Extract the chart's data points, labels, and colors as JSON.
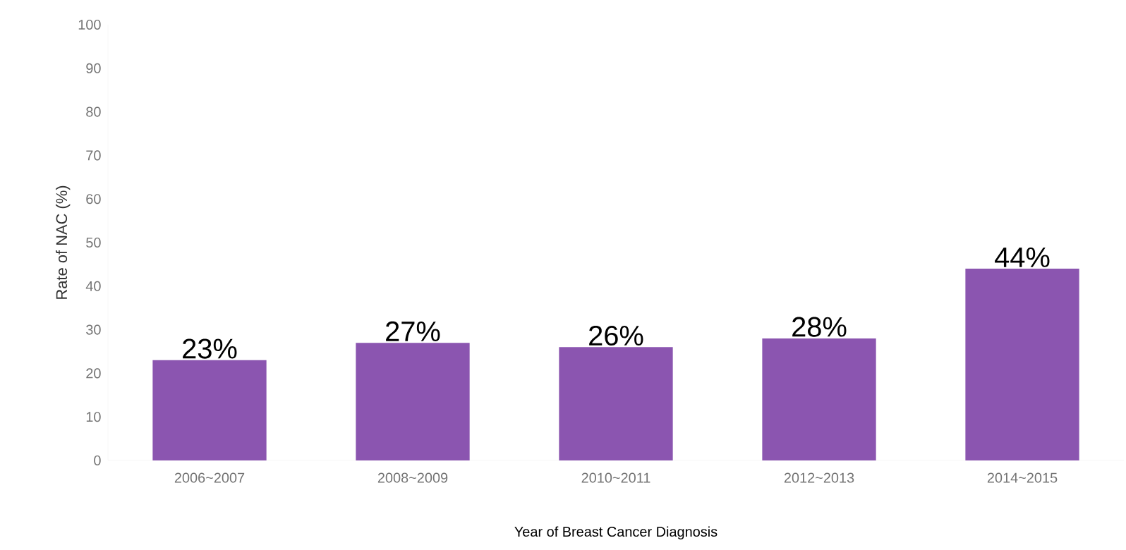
{
  "chart_data": {
    "type": "bar",
    "xlabel": "Year of Breast Cancer Diagnosis",
    "ylabel": "Rate of NAC  (%)",
    "categories": [
      "2006~2007",
      "2008~2009",
      "2010~2011",
      "2012~2013",
      "2014~2015"
    ],
    "values": [
      23,
      27,
      26,
      28,
      44
    ],
    "value_labels": [
      "23%",
      "27%",
      "26%",
      "28%",
      "44%"
    ],
    "color": "#8b55b0",
    "ylim": [
      0,
      100
    ],
    "yticks": [
      0,
      10,
      20,
      30,
      40,
      50,
      60,
      70,
      80,
      90,
      100
    ],
    "grid": false
  }
}
